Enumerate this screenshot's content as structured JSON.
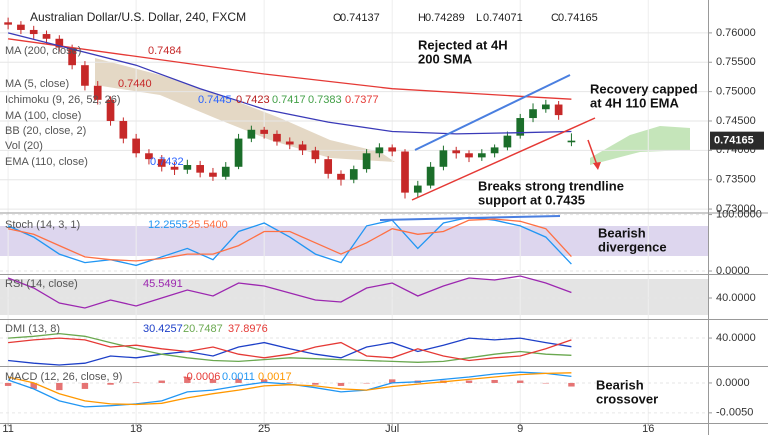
{
  "chart_data": [
    {
      "type": "candlestick",
      "title": "Australian Dollar/U.S. Dollar, 240, FXCM",
      "header_labels": [
        "O",
        "H",
        "L",
        "C"
      ],
      "ylim": [
        0.7295,
        0.7656
      ],
      "yticks": [
        {
          "value": 0.73,
          "label": "0.73000"
        },
        {
          "value": 0.735,
          "label": "0.73500"
        },
        {
          "value": 0.74,
          "label": "0.74000"
        },
        {
          "value": 0.745,
          "label": "0.74500"
        },
        {
          "value": 0.75,
          "label": "0.75000"
        },
        {
          "value": 0.755,
          "label": "0.75500"
        },
        {
          "value": 0.76,
          "label": "0.76000"
        }
      ],
      "series": [
        {
          "type": "candlestick",
          "up_color": "#1b6e2a",
          "down_color": "#c62828",
          "x": [
            0,
            3,
            6,
            9,
            12,
            15,
            18,
            21,
            24,
            27,
            30,
            33,
            36,
            39,
            42,
            45,
            48,
            51,
            54,
            57,
            60,
            63,
            66,
            69,
            72,
            75,
            78,
            81,
            84,
            87,
            90,
            93,
            96,
            99,
            102,
            105,
            108,
            111,
            114,
            117,
            120,
            123,
            126,
            129,
            132
          ],
          "open": [
            0.7618,
            0.7614,
            0.7605,
            0.7598,
            0.759,
            0.7575,
            0.7545,
            0.751,
            0.7486,
            0.745,
            0.742,
            0.7395,
            0.7385,
            0.7372,
            0.7367,
            0.7375,
            0.7362,
            0.7355,
            0.7372,
            0.742,
            0.7435,
            0.7428,
            0.7415,
            0.741,
            0.74,
            0.7385,
            0.736,
            0.735,
            0.7368,
            0.7395,
            0.7405,
            0.7398,
            0.7328,
            0.734,
            0.7372,
            0.74,
            0.7395,
            0.7388,
            0.7395,
            0.7405,
            0.7425,
            0.7455,
            0.747,
            0.7478,
            0.74137
          ],
          "high": [
            0.7626,
            0.762,
            0.7612,
            0.7604,
            0.7596,
            0.758,
            0.7552,
            0.7518,
            0.7492,
            0.7456,
            0.7428,
            0.7402,
            0.7392,
            0.738,
            0.7384,
            0.7382,
            0.737,
            0.738,
            0.7428,
            0.7442,
            0.744,
            0.7434,
            0.7422,
            0.7416,
            0.7406,
            0.739,
            0.7366,
            0.7374,
            0.7402,
            0.7412,
            0.741,
            0.7402,
            0.7348,
            0.738,
            0.7408,
            0.7406,
            0.74,
            0.7402,
            0.741,
            0.7432,
            0.7462,
            0.748,
            0.7486,
            0.7484,
            0.74289
          ],
          "low": [
            0.7606,
            0.7598,
            0.759,
            0.7582,
            0.7568,
            0.7538,
            0.7502,
            0.7478,
            0.7442,
            0.7412,
            0.7388,
            0.7376,
            0.7364,
            0.7358,
            0.736,
            0.7354,
            0.7348,
            0.735,
            0.7368,
            0.7414,
            0.742,
            0.7408,
            0.7402,
            0.7392,
            0.7378,
            0.7352,
            0.734,
            0.7344,
            0.7362,
            0.7388,
            0.739,
            0.7318,
            0.732,
            0.7335,
            0.7366,
            0.7386,
            0.738,
            0.7382,
            0.7388,
            0.74,
            0.742,
            0.7448,
            0.7464,
            0.7452,
            0.74071
          ],
          "close": [
            0.7614,
            0.7605,
            0.7598,
            0.759,
            0.7575,
            0.7545,
            0.751,
            0.7486,
            0.745,
            0.742,
            0.7395,
            0.7385,
            0.7372,
            0.7367,
            0.7375,
            0.7362,
            0.7355,
            0.7372,
            0.742,
            0.7435,
            0.7428,
            0.7415,
            0.741,
            0.74,
            0.7385,
            0.736,
            0.735,
            0.7368,
            0.7395,
            0.7405,
            0.7398,
            0.7328,
            0.734,
            0.7372,
            0.74,
            0.7395,
            0.7388,
            0.7395,
            0.7405,
            0.7425,
            0.7455,
            0.747,
            0.7478,
            0.746,
            0.74165
          ]
        },
        {
          "type": "line",
          "color": "#e53935",
          "x": [
            0,
            30,
            60,
            90,
            120,
            132
          ],
          "values": [
            0.759,
            0.756,
            0.753,
            0.7505,
            0.7492,
            0.7487
          ]
        },
        {
          "type": "line",
          "color": "#3a3ab8",
          "x": [
            0,
            30,
            45,
            60,
            75,
            90,
            105,
            120,
            132
          ],
          "values": [
            0.76,
            0.7545,
            0.7505,
            0.747,
            0.7448,
            0.7432,
            0.7428,
            0.743,
            0.7432
          ]
        }
      ],
      "legend": [
        {
          "name": "MA (200, close)",
          "values": [
            0.7484
          ],
          "colors": [
            "#c62828"
          ]
        },
        {
          "name": "MA (5, close)",
          "values": [
            0.744
          ],
          "value_labels": [
            "0.7440"
          ],
          "colors": [
            "#c62828"
          ]
        },
        {
          "name": "Ichimoku (9, 26, 52, 26)",
          "values": [
            0.7445,
            0.7423,
            0.7417,
            0.7383,
            0.7377
          ],
          "colors": [
            "#2962ff",
            "#b71c1c",
            "#43a047",
            "#43a047",
            "#e53935"
          ]
        },
        {
          "name": "MA (100, close)",
          "values": [],
          "colors": []
        },
        {
          "name": "BB (20, close, 2)",
          "values": [],
          "colors": []
        },
        {
          "name": "Vol (20)",
          "values": [],
          "colors": []
        },
        {
          "name": "EMA (110, close)",
          "values": [
            0.7432
          ],
          "colors": [
            "#2962ff"
          ]
        }
      ],
      "annotations": [
        {
          "lines": [
            "Rejected at 4H",
            "200 SMA"
          ]
        },
        {
          "lines": [
            "Recovery capped",
            "at 4H 110 EMA"
          ]
        },
        {
          "lines": [
            "Breaks strong trendline",
            "support at 0.7435"
          ]
        }
      ]
    },
    {
      "type": "line",
      "ylim": [
        -3.5,
        101
      ],
      "yticks": [
        {
          "value": 100,
          "label": "100.0000"
        },
        {
          "value": 0,
          "label": "0.0000"
        }
      ],
      "x": [
        0,
        6,
        12,
        18,
        24,
        30,
        36,
        42,
        48,
        54,
        60,
        66,
        72,
        78,
        84,
        90,
        96,
        102,
        108,
        114,
        120,
        126,
        132
      ],
      "series": [
        {
          "type": "line",
          "color": "#2196f3",
          "values": [
            80,
            60,
            30,
            15,
            20,
            10,
            25,
            40,
            20,
            70,
            85,
            60,
            30,
            15,
            80,
            90,
            40,
            85,
            95,
            90,
            80,
            60,
            12.2555
          ]
        },
        {
          "type": "line",
          "color": "#ff7043",
          "values": [
            75,
            65,
            45,
            25,
            20,
            18,
            22,
            30,
            30,
            45,
            70,
            70,
            50,
            30,
            50,
            75,
            65,
            70,
            90,
            92,
            88,
            75,
            25.54
          ]
        }
      ],
      "legend": [
        {
          "name": "Stoch (14, 3, 1)",
          "values": [
            12.2555,
            25.54
          ],
          "value_labels": [
            "12.2555",
            "25.5400"
          ],
          "colors": [
            "#2196f3",
            "#ff7043"
          ]
        }
      ],
      "annotations": [
        {
          "lines": [
            "Bearish",
            "divergence"
          ]
        }
      ]
    },
    {
      "type": "line",
      "ylim": [
        20,
        62
      ],
      "yticks": [
        {
          "value": 40,
          "label": "40.0000"
        }
      ],
      "x": [
        0,
        6,
        12,
        18,
        24,
        30,
        36,
        42,
        48,
        54,
        60,
        66,
        72,
        78,
        84,
        90,
        96,
        102,
        108,
        114,
        120,
        126,
        132
      ],
      "series": [
        {
          "type": "line",
          "color": "#9c27b0",
          "values": [
            60,
            50,
            35,
            30,
            38,
            32,
            40,
            48,
            42,
            55,
            52,
            45,
            38,
            36,
            50,
            55,
            42,
            52,
            60,
            58,
            62,
            55,
            45.5491
          ]
        }
      ],
      "legend": [
        {
          "name": "RSI (14, close)",
          "values": [
            45.5491
          ],
          "colors": [
            "#9c27b0"
          ]
        }
      ],
      "annotations": []
    },
    {
      "type": "line",
      "ylim": [
        10,
        59
      ],
      "yticks": [
        {
          "value": 40,
          "label": "40.0000"
        }
      ],
      "x": [
        0,
        6,
        12,
        18,
        24,
        30,
        36,
        42,
        48,
        54,
        60,
        66,
        72,
        78,
        84,
        90,
        96,
        102,
        108,
        114,
        120,
        126,
        132
      ],
      "series": [
        {
          "type": "line",
          "color": "#1e40c8",
          "values": [
            15,
            12,
            10,
            12,
            20,
            18,
            22,
            25,
            20,
            30,
            35,
            28,
            22,
            18,
            30,
            35,
            25,
            32,
            40,
            38,
            40,
            35,
            30.4257
          ]
        },
        {
          "type": "line",
          "color": "#6aa84f",
          "values": [
            40,
            42,
            45,
            42,
            35,
            28,
            22,
            18,
            15,
            14,
            16,
            18,
            17,
            16,
            15,
            14,
            13,
            14,
            18,
            22,
            25,
            22,
            20.7487
          ]
        },
        {
          "type": "line",
          "color": "#e53935",
          "values": [
            35,
            38,
            40,
            38,
            30,
            32,
            28,
            25,
            30,
            22,
            18,
            22,
            30,
            35,
            20,
            18,
            28,
            20,
            15,
            18,
            20,
            28,
            37.8976
          ]
        }
      ],
      "legend": [
        {
          "name": "DMI (13, 8)",
          "values": [
            30.4257,
            20.7487,
            37.8976
          ],
          "colors": [
            "#1e40c8",
            "#6aa84f",
            "#e53935"
          ]
        }
      ],
      "annotations": []
    },
    {
      "type": "line",
      "ylim": [
        -0.0067,
        0.0025
      ],
      "yticks": [
        {
          "value": 0,
          "label": "0.0000"
        },
        {
          "value": -0.005,
          "label": "-0.0050"
        }
      ],
      "xlim": [
        -1.9,
        164
      ],
      "xticks": [
        {
          "value": 0,
          "label": "11"
        },
        {
          "value": 30,
          "label": "18"
        },
        {
          "value": 60,
          "label": "25"
        },
        {
          "value": 90,
          "label": "Jul"
        },
        {
          "value": 120,
          "label": "9"
        },
        {
          "value": 150,
          "label": "16"
        }
      ],
      "x": [
        0,
        6,
        12,
        18,
        24,
        30,
        36,
        42,
        48,
        54,
        60,
        66,
        72,
        78,
        84,
        90,
        96,
        102,
        108,
        114,
        120,
        126,
        132
      ],
      "series": [
        {
          "type": "bar",
          "color": "#e57373",
          "values": [
            -0.0005,
            -0.001,
            -0.0012,
            -0.001,
            -0.0003,
            0.0001,
            0.0004,
            0.001,
            0.0006,
            0.0007,
            0.0006,
            0.0001,
            -0.0003,
            -0.0005,
            0,
            0.0006,
            0.0004,
            0.0004,
            0.0004,
            0.0005,
            0.0004,
            0,
            -0.0006
          ]
        },
        {
          "type": "line",
          "color": "#2196f3",
          "values": [
            0.0005,
            -0.001,
            -0.003,
            -0.004,
            -0.0038,
            -0.0035,
            -0.003,
            -0.0015,
            -0.0012,
            -0.0005,
            0.0001,
            -0.0002,
            -0.0008,
            -0.0015,
            -0.0012,
            0,
            0.0002,
            0.0006,
            0.001,
            0.0015,
            0.0018,
            0.0016,
            0.0011
          ]
        },
        {
          "type": "line",
          "color": "#ff9800",
          "values": [
            0.001,
            0,
            -0.0018,
            -0.003,
            -0.0035,
            -0.0036,
            -0.0034,
            -0.0025,
            -0.0018,
            -0.0012,
            -0.0005,
            -0.0003,
            -0.0005,
            -0.001,
            -0.0012,
            -0.0006,
            -0.0002,
            0.0002,
            0.0006,
            0.001,
            0.0014,
            0.0016,
            0.0017
          ]
        }
      ],
      "legend": [
        {
          "name": "MACD (12, 26, close, 9)",
          "values": [
            -0.0006,
            0.0011,
            0.0017
          ],
          "colors": [
            "#e53935",
            "#2196f3",
            "#ff9800"
          ]
        }
      ],
      "annotations": [
        {
          "lines": [
            "Bearish",
            "crossover"
          ]
        }
      ]
    }
  ]
}
